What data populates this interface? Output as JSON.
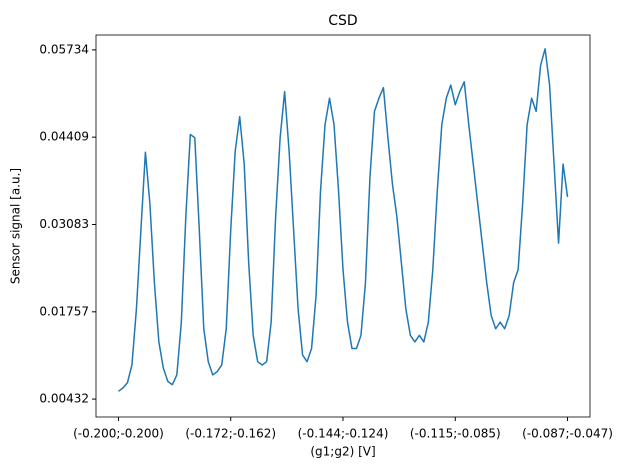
{
  "chart_data": {
    "type": "line",
    "title": "CSD",
    "x_label": "(g1;g2) [V]",
    "y_label": "Sensor signal [a.u.]",
    "x": [
      0,
      1,
      2,
      3,
      4,
      5,
      6,
      7,
      8,
      9,
      10,
      11,
      12,
      13,
      14,
      15,
      16,
      17,
      18,
      19,
      20,
      21,
      22,
      23,
      24,
      25,
      26,
      27,
      28,
      29,
      30,
      31,
      32,
      33,
      34,
      35,
      36,
      37,
      38,
      39,
      40,
      41,
      42,
      43,
      44,
      45,
      46,
      47,
      48,
      49,
      50,
      51,
      52,
      53,
      54,
      55,
      56,
      57,
      58,
      59,
      60,
      61,
      62,
      63,
      64,
      65,
      66,
      67,
      68,
      69,
      70,
      71,
      72,
      73,
      74,
      75,
      76,
      77,
      78,
      79,
      80,
      81,
      82,
      83,
      84,
      85,
      86,
      87,
      88,
      89,
      90,
      91,
      92,
      93,
      94,
      95,
      96,
      97,
      98,
      99,
      100
    ],
    "series": [
      {
        "color": "#1f77b4",
        "values": [
          0.0055,
          0.006,
          0.0068,
          0.0095,
          0.018,
          0.03,
          0.0418,
          0.034,
          0.022,
          0.013,
          0.009,
          0.007,
          0.0065,
          0.008,
          0.016,
          0.032,
          0.0445,
          0.044,
          0.03,
          0.015,
          0.01,
          0.008,
          0.0085,
          0.0095,
          0.015,
          0.03,
          0.042,
          0.0472,
          0.04,
          0.025,
          0.014,
          0.01,
          0.0095,
          0.01,
          0.016,
          0.032,
          0.044,
          0.051,
          0.042,
          0.03,
          0.018,
          0.011,
          0.01,
          0.012,
          0.02,
          0.036,
          0.046,
          0.05,
          0.046,
          0.036,
          0.024,
          0.016,
          0.012,
          0.012,
          0.014,
          0.022,
          0.038,
          0.048,
          0.05,
          0.0516,
          0.044,
          0.037,
          0.032,
          0.025,
          0.018,
          0.014,
          0.013,
          0.014,
          0.013,
          0.016,
          0.024,
          0.036,
          0.046,
          0.05,
          0.052,
          0.049,
          0.051,
          0.0525,
          0.046,
          0.04,
          0.034,
          0.028,
          0.022,
          0.017,
          0.015,
          0.016,
          0.015,
          0.017,
          0.022,
          0.024,
          0.034,
          0.046,
          0.05,
          0.048,
          0.055,
          0.0575,
          0.052,
          0.04,
          0.028,
          0.04,
          0.035
        ]
      }
    ],
    "xlim": [
      -5,
      105
    ],
    "xticks": [
      {
        "value": 0,
        "label": "(-0.200;-0.200)"
      },
      {
        "value": 25,
        "label": "(-0.172;-0.162)"
      },
      {
        "value": 50,
        "label": "(-0.144;-0.124)"
      },
      {
        "value": 75,
        "label": "(-0.115;-0.085)"
      },
      {
        "value": 100,
        "label": "(-0.087;-0.047)"
      }
    ],
    "ylim": [
      0.0016,
      0.0596
    ],
    "yticks": [
      0.00432,
      0.01757,
      0.03083,
      0.04409,
      0.05734
    ],
    "grid": false
  }
}
